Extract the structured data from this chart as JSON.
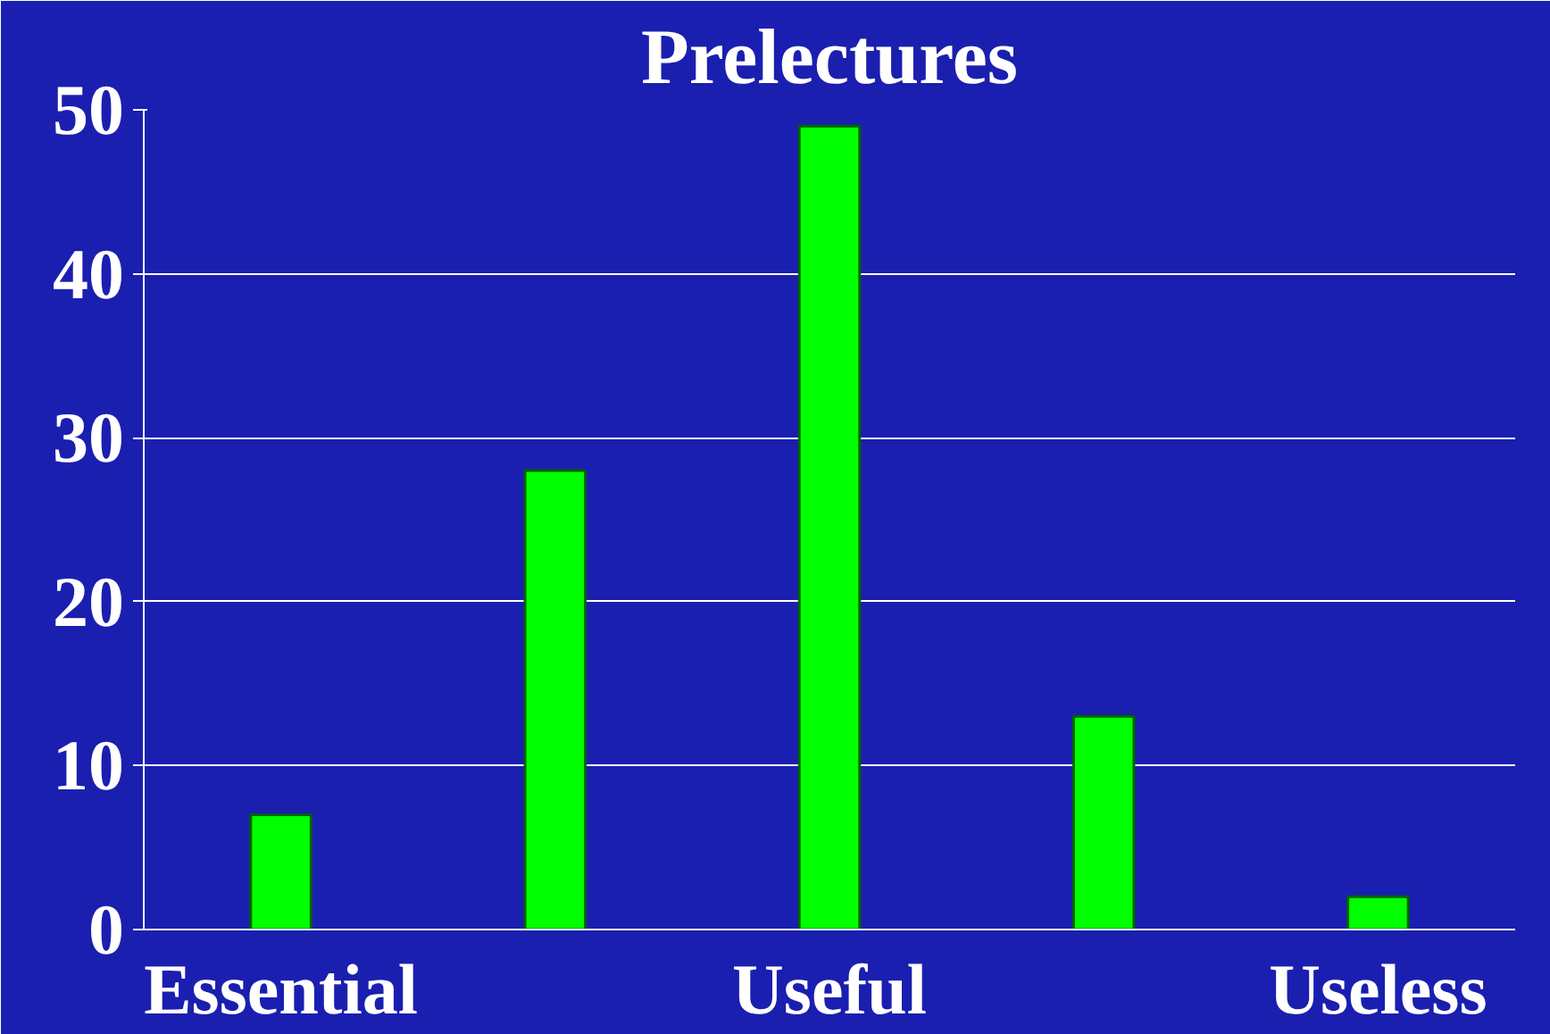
{
  "chart_data": {
    "type": "bar",
    "title": "Prelectures",
    "categories": [
      "Essential",
      null,
      "Useful",
      null,
      "Useless"
    ],
    "values": [
      7,
      28,
      49,
      13,
      2
    ],
    "color": "#00ff00",
    "ylim": [
      0,
      50
    ],
    "yticks": [
      0,
      10,
      20,
      30,
      40,
      50
    ],
    "grid": "y"
  }
}
